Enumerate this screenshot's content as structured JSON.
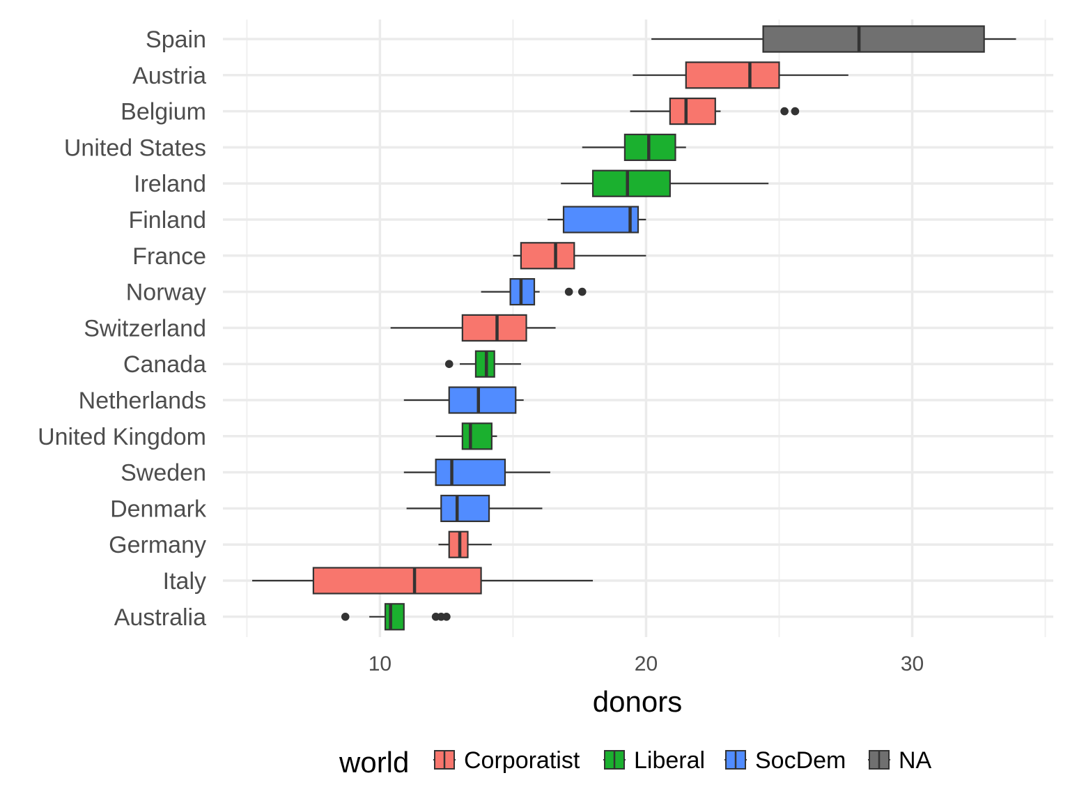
{
  "chart_data": {
    "type": "boxplot",
    "orientation": "horizontal",
    "xlabel": "donors",
    "xlim": [
      4.1,
      35.3
    ],
    "x_ticks": [
      10,
      20,
      30
    ],
    "x_minor_ticks": [
      5,
      15,
      25,
      35
    ],
    "grid": true,
    "legend": {
      "title": "world",
      "position": "bottom",
      "entries": [
        {
          "name": "Corporatist",
          "color": "#F8766D"
        },
        {
          "name": "Liberal",
          "color": "#1BB02F"
        },
        {
          "name": "SocDem",
          "color": "#518CFF"
        },
        {
          "name": "NA",
          "color": "#707070"
        }
      ]
    },
    "categories": [
      "Spain",
      "Austria",
      "Belgium",
      "United States",
      "Ireland",
      "Finland",
      "France",
      "Norway",
      "Switzerland",
      "Canada",
      "Netherlands",
      "United Kingdom",
      "Sweden",
      "Denmark",
      "Germany",
      "Italy",
      "Australia"
    ],
    "boxes": [
      {
        "country": "Spain",
        "world": "NA",
        "whisker_low": 20.2,
        "q1": 24.4,
        "median": 28.0,
        "q3": 32.7,
        "whisker_high": 33.9,
        "outliers": []
      },
      {
        "country": "Austria",
        "world": "Corporatist",
        "whisker_low": 19.5,
        "q1": 21.5,
        "median": 23.9,
        "q3": 25.0,
        "whisker_high": 27.6,
        "outliers": []
      },
      {
        "country": "Belgium",
        "world": "Corporatist",
        "whisker_low": 19.4,
        "q1": 20.9,
        "median": 21.5,
        "q3": 22.6,
        "whisker_high": 22.8,
        "outliers": [
          25.2,
          25.6
        ]
      },
      {
        "country": "United States",
        "world": "Liberal",
        "whisker_low": 17.6,
        "q1": 19.2,
        "median": 20.1,
        "q3": 21.1,
        "whisker_high": 21.5,
        "outliers": []
      },
      {
        "country": "Ireland",
        "world": "Liberal",
        "whisker_low": 16.8,
        "q1": 18.0,
        "median": 19.3,
        "q3": 20.9,
        "whisker_high": 24.6,
        "outliers": []
      },
      {
        "country": "Finland",
        "world": "SocDem",
        "whisker_low": 16.3,
        "q1": 16.9,
        "median": 19.4,
        "q3": 19.7,
        "whisker_high": 20.0,
        "outliers": []
      },
      {
        "country": "France",
        "world": "Corporatist",
        "whisker_low": 15.0,
        "q1": 15.3,
        "median": 16.6,
        "q3": 17.3,
        "whisker_high": 20.0,
        "outliers": []
      },
      {
        "country": "Norway",
        "world": "SocDem",
        "whisker_low": 13.8,
        "q1": 14.9,
        "median": 15.3,
        "q3": 15.8,
        "whisker_high": 16.0,
        "outliers": [
          17.1,
          17.6
        ]
      },
      {
        "country": "Switzerland",
        "world": "Corporatist",
        "whisker_low": 10.4,
        "q1": 13.1,
        "median": 14.4,
        "q3": 15.5,
        "whisker_high": 16.6,
        "outliers": []
      },
      {
        "country": "Canada",
        "world": "Liberal",
        "whisker_low": 13.0,
        "q1": 13.6,
        "median": 14.0,
        "q3": 14.3,
        "whisker_high": 15.3,
        "outliers": [
          12.6
        ]
      },
      {
        "country": "Netherlands",
        "world": "SocDem",
        "whisker_low": 10.9,
        "q1": 12.6,
        "median": 13.7,
        "q3": 15.1,
        "whisker_high": 15.4,
        "outliers": []
      },
      {
        "country": "United Kingdom",
        "world": "Liberal",
        "whisker_low": 12.1,
        "q1": 13.1,
        "median": 13.4,
        "q3": 14.2,
        "whisker_high": 14.4,
        "outliers": []
      },
      {
        "country": "Sweden",
        "world": "SocDem",
        "whisker_low": 10.9,
        "q1": 12.1,
        "median": 12.7,
        "q3": 14.7,
        "whisker_high": 16.4,
        "outliers": []
      },
      {
        "country": "Denmark",
        "world": "SocDem",
        "whisker_low": 11.0,
        "q1": 12.3,
        "median": 12.9,
        "q3": 14.1,
        "whisker_high": 16.1,
        "outliers": []
      },
      {
        "country": "Germany",
        "world": "Corporatist",
        "whisker_low": 12.2,
        "q1": 12.6,
        "median": 13.0,
        "q3": 13.3,
        "whisker_high": 14.2,
        "outliers": []
      },
      {
        "country": "Italy",
        "world": "Corporatist",
        "whisker_low": 5.2,
        "q1": 7.5,
        "median": 11.3,
        "q3": 13.8,
        "whisker_high": 18.0,
        "outliers": []
      },
      {
        "country": "Australia",
        "world": "Liberal",
        "whisker_low": 9.6,
        "q1": 10.2,
        "median": 10.4,
        "q3": 10.9,
        "whisker_high": 10.9,
        "outliers": [
          8.7,
          12.1,
          12.3,
          12.5
        ]
      }
    ]
  }
}
